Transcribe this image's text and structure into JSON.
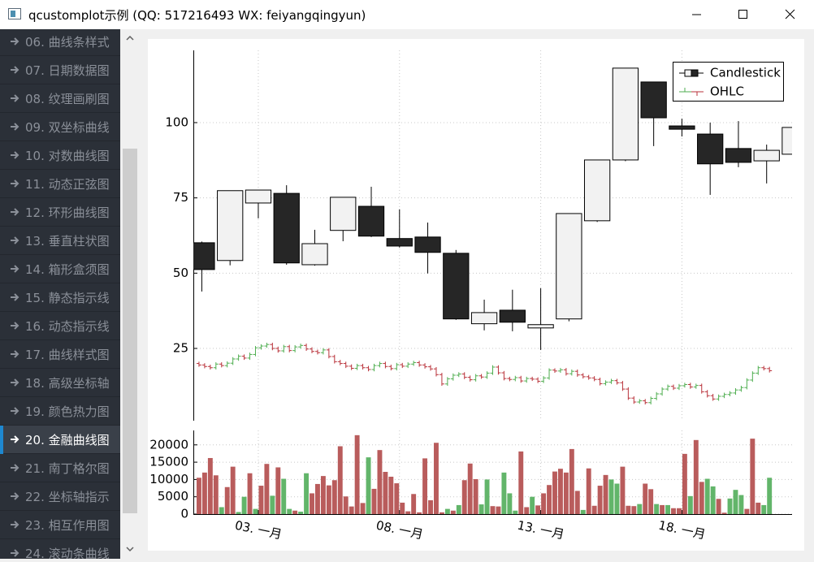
{
  "window": {
    "title": "qcustomplot示例 (QQ: 517216493 WX: feiyangqingyun)"
  },
  "sidebar": {
    "items": [
      "06. 曲线条样式",
      "07. 日期数据图",
      "08. 纹理画刷图",
      "09. 双坐标曲线",
      "10. 对数曲线图",
      "11. 动态正弦图",
      "12. 环形曲线图",
      "13. 垂直柱状图",
      "14. 箱形盒须图",
      "15. 静态指示线",
      "16. 动态指示线",
      "17. 曲线样式图",
      "18. 高级坐标轴",
      "19. 颜色热力图",
      "20. 金融曲线图",
      "21. 南丁格尔图",
      "22. 坐标轴指示",
      "23. 相互作用图",
      "24. 滚动条曲线"
    ],
    "selected": 14
  },
  "chart_data": [
    {
      "type": "candlestick",
      "xlim": [
        0.7,
        21.9
      ],
      "ylim": [
        1,
        124
      ],
      "yticks": [
        25,
        50,
        75,
        100
      ],
      "xticks": [
        3,
        8,
        13,
        18
      ],
      "grid": true,
      "legend": "top-right",
      "series": [
        {
          "name": "Candlestick",
          "type": "candlestick",
          "up_color": "#f2f2f2",
          "down_color": "#262626",
          "color": "#000000",
          "x": [
            1,
            2,
            3,
            4,
            5,
            6,
            7,
            8,
            9,
            10,
            11,
            12,
            13,
            14,
            15,
            16,
            17,
            18,
            19,
            20,
            21,
            22
          ],
          "open": [
            60.1,
            54.2,
            73.3,
            76.5,
            52.8,
            64.2,
            72.2,
            61.5,
            62.0,
            56.6,
            33.2,
            37.7,
            31.8,
            34.8,
            67.4,
            87.6,
            113.5,
            98.9,
            96.2,
            91.4,
            87.3,
            89.5
          ],
          "high": [
            60.5,
            77.4,
            77.6,
            79.2,
            64.4,
            75.2,
            78.7,
            71.2,
            66.8,
            57.7,
            41.2,
            44.5,
            45.0,
            69.8,
            87.6,
            118.1,
            113.5,
            101.3,
            100.0,
            100.5,
            92.7,
            98.4
          ],
          "low": [
            43.9,
            52.6,
            68.2,
            52.8,
            52.5,
            60.6,
            62.0,
            58.5,
            49.9,
            34.5,
            31.0,
            30.7,
            24.5,
            34.0,
            67.0,
            87.2,
            92.2,
            95.4,
            76.0,
            85.2,
            79.8,
            89.0
          ],
          "close": [
            51.2,
            77.4,
            77.6,
            53.4,
            59.8,
            75.2,
            62.3,
            59.0,
            56.9,
            34.8,
            36.9,
            33.7,
            32.9,
            69.8,
            87.6,
            118.1,
            101.6,
            97.8,
            86.3,
            86.8,
            90.8,
            98.4
          ]
        },
        {
          "name": "OHLC",
          "type": "ohlc",
          "up_color": "#4fae50",
          "down_color": "#b9323a",
          "x": [
            0.9,
            1.1,
            1.3,
            1.5,
            1.7,
            1.9,
            2.1,
            2.3,
            2.5,
            2.7,
            2.9,
            3.1,
            3.3,
            3.5,
            3.7,
            3.9,
            4.1,
            4.3,
            4.5,
            4.7,
            4.9,
            5.1,
            5.3,
            5.5,
            5.7,
            5.9,
            6.1,
            6.3,
            6.5,
            6.7,
            6.9,
            7.1,
            7.3,
            7.5,
            7.7,
            7.9,
            8.1,
            8.3,
            8.5,
            8.7,
            8.9,
            9.1,
            9.3,
            9.5,
            9.7,
            9.9,
            10.1,
            10.3,
            10.5,
            10.7,
            10.9,
            11.1,
            11.3,
            11.5,
            11.7,
            11.9,
            12.1,
            12.3,
            12.5,
            12.7,
            12.9,
            13.1,
            13.3,
            13.5,
            13.7,
            13.9,
            14.1,
            14.3,
            14.5,
            14.7,
            14.9,
            15.1,
            15.3,
            15.5,
            15.7,
            15.9,
            16.1,
            16.3,
            16.5,
            16.7,
            16.9,
            17.1,
            17.3,
            17.5,
            17.7,
            17.9,
            18.1,
            18.3,
            18.5,
            18.7,
            18.9,
            19.1,
            19.3,
            19.5,
            19.7,
            19.9,
            20.1,
            20.3,
            20.5,
            20.7,
            20.9,
            21.1
          ],
          "open": [
            20.0,
            19.5,
            19.0,
            18.6,
            19.8,
            19.3,
            20.1,
            21.5,
            22.4,
            21.8,
            23.0,
            25.2,
            25.8,
            26.3,
            25.0,
            24.2,
            25.6,
            24.3,
            25.5,
            26.0,
            24.8,
            24.0,
            23.6,
            24.5,
            22.3,
            20.6,
            20.0,
            19.1,
            18.4,
            19.3,
            18.6,
            18.0,
            19.3,
            20.0,
            19.0,
            18.3,
            19.6,
            19.1,
            19.8,
            20.3,
            19.5,
            18.9,
            18.2,
            16.3,
            13.2,
            14.9,
            16.1,
            16.5,
            15.4,
            14.6,
            15.9,
            15.5,
            16.8,
            18.8,
            16.9,
            15.0,
            14.7,
            15.3,
            14.2,
            15.0,
            14.8,
            14.1,
            15.2,
            17.8,
            17.5,
            17.9,
            16.6,
            17.4,
            16.2,
            15.6,
            15.2,
            14.7,
            13.3,
            13.8,
            14.3,
            13.6,
            11.5,
            8.5,
            7.2,
            7.6,
            7.0,
            8.4,
            9.9,
            11.5,
            12.4,
            11.8,
            12.6,
            13.0,
            12.2,
            12.7,
            10.6,
            9.3,
            8.2,
            9.1,
            9.7,
            10.2,
            11.2,
            12.0,
            14.5,
            16.8,
            18.6,
            18.3
          ],
          "high": [
            20.6,
            20.1,
            19.6,
            20.4,
            20.4,
            20.7,
            22.1,
            23.0,
            23.0,
            23.6,
            25.8,
            26.4,
            26.9,
            26.9,
            25.6,
            26.2,
            26.2,
            26.1,
            26.6,
            26.6,
            25.4,
            24.6,
            25.1,
            25.1,
            22.9,
            21.2,
            20.6,
            19.7,
            19.9,
            19.9,
            19.2,
            19.9,
            20.6,
            20.6,
            19.6,
            20.2,
            20.2,
            20.4,
            20.9,
            20.9,
            20.1,
            19.5,
            18.8,
            16.9,
            15.5,
            16.7,
            17.1,
            17.1,
            16.0,
            16.5,
            16.5,
            17.4,
            19.4,
            19.4,
            17.5,
            15.6,
            15.9,
            15.9,
            15.6,
            15.6,
            15.4,
            15.8,
            18.4,
            18.4,
            18.5,
            18.5,
            18.0,
            18.0,
            16.8,
            16.2,
            15.8,
            15.3,
            14.4,
            14.9,
            14.9,
            14.2,
            12.1,
            9.1,
            8.2,
            8.2,
            9.0,
            10.5,
            12.1,
            13.0,
            13.0,
            13.2,
            13.6,
            13.6,
            13.3,
            13.3,
            11.2,
            9.9,
            9.7,
            10.3,
            10.8,
            11.8,
            12.6,
            15.1,
            17.4,
            19.2,
            19.2,
            18.9
          ],
          "low": [
            18.9,
            18.4,
            18.0,
            18.0,
            18.7,
            18.7,
            19.5,
            20.9,
            21.2,
            21.2,
            22.4,
            24.6,
            25.2,
            24.4,
            23.6,
            23.6,
            23.7,
            23.7,
            24.9,
            24.2,
            23.4,
            23.0,
            23.0,
            21.7,
            20.0,
            19.4,
            18.5,
            17.8,
            17.8,
            18.0,
            17.4,
            17.4,
            18.7,
            18.4,
            17.7,
            17.7,
            18.5,
            18.5,
            19.2,
            18.9,
            18.3,
            17.6,
            15.7,
            12.6,
            12.6,
            14.3,
            15.5,
            14.8,
            14.0,
            14.0,
            14.9,
            14.9,
            16.2,
            16.3,
            14.4,
            14.1,
            14.1,
            13.6,
            13.6,
            14.2,
            13.5,
            13.5,
            14.6,
            16.9,
            16.9,
            16.0,
            16.0,
            15.6,
            15.0,
            14.6,
            14.1,
            12.7,
            12.7,
            13.2,
            13.0,
            10.9,
            7.9,
            6.6,
            6.6,
            6.4,
            6.4,
            7.8,
            9.3,
            10.9,
            11.2,
            11.2,
            12.0,
            11.6,
            11.6,
            10.0,
            8.7,
            7.6,
            7.6,
            8.5,
            9.1,
            9.6,
            10.6,
            11.4,
            13.9,
            16.2,
            17.7,
            17.0
          ],
          "close": [
            19.5,
            19.0,
            18.6,
            19.8,
            19.3,
            20.1,
            21.5,
            22.4,
            21.8,
            23.0,
            25.2,
            25.8,
            26.3,
            25.0,
            24.2,
            25.6,
            24.3,
            25.5,
            26.0,
            24.8,
            24.0,
            23.6,
            24.5,
            22.3,
            20.6,
            20.0,
            19.1,
            18.4,
            19.3,
            18.6,
            18.0,
            19.3,
            20.0,
            19.0,
            18.3,
            19.6,
            19.1,
            19.8,
            20.3,
            19.5,
            18.9,
            18.2,
            16.3,
            13.2,
            14.9,
            16.1,
            16.5,
            15.4,
            14.6,
            15.9,
            15.5,
            16.8,
            18.8,
            16.9,
            15.0,
            14.7,
            15.3,
            14.2,
            15.0,
            14.8,
            14.1,
            15.2,
            17.8,
            17.5,
            17.9,
            16.6,
            17.4,
            16.2,
            15.6,
            15.2,
            14.7,
            13.3,
            13.8,
            14.3,
            13.6,
            11.5,
            8.5,
            7.2,
            7.6,
            7.0,
            8.4,
            9.9,
            11.5,
            12.4,
            11.8,
            12.6,
            13.0,
            12.2,
            12.7,
            10.6,
            9.3,
            8.2,
            9.1,
            9.7,
            10.2,
            11.2,
            12.0,
            14.5,
            16.8,
            18.6,
            18.3,
            17.6
          ]
        }
      ]
    },
    {
      "type": "bar",
      "xlim": [
        0.7,
        21.9
      ],
      "ylim": [
        0,
        23000
      ],
      "yticks": [
        0,
        5000,
        10000,
        15000,
        20000
      ],
      "grid": true,
      "xticks": [
        {
          "value": 3,
          "label": "03. 一月"
        },
        {
          "value": 8,
          "label": "08. 一月"
        },
        {
          "value": 13,
          "label": "13. 一月"
        },
        {
          "value": 18,
          "label": "18. 一月"
        }
      ],
      "x": [
        0.9,
        1.1,
        1.3,
        1.5,
        1.7,
        1.9,
        2.1,
        2.3,
        2.5,
        2.7,
        2.9,
        3.1,
        3.3,
        3.5,
        3.7,
        3.9,
        4.1,
        4.3,
        4.5,
        4.7,
        4.9,
        5.1,
        5.3,
        5.5,
        5.7,
        5.9,
        6.1,
        6.3,
        6.5,
        6.7,
        6.9,
        7.1,
        7.3,
        7.5,
        7.7,
        7.9,
        8.1,
        8.3,
        8.5,
        8.7,
        8.9,
        9.1,
        9.3,
        9.5,
        9.7,
        9.9,
        10.1,
        10.3,
        10.5,
        10.7,
        10.9,
        11.1,
        11.3,
        11.5,
        11.7,
        11.9,
        12.1,
        12.3,
        12.5,
        12.7,
        12.9,
        13.1,
        13.3,
        13.5,
        13.7,
        13.9,
        14.1,
        14.3,
        14.5,
        14.7,
        14.9,
        15.1,
        15.3,
        15.5,
        15.7,
        15.9,
        16.1,
        16.3,
        16.5,
        16.7,
        16.9,
        17.1,
        17.3,
        17.5,
        17.7,
        17.9,
        18.1,
        18.3,
        18.5,
        18.7,
        18.9,
        19.1,
        19.3,
        19.5,
        19.7,
        19.9,
        20.1,
        20.3,
        20.5,
        20.7,
        20.9,
        21.1
      ],
      "values": [
        10500,
        12000,
        16200,
        11200,
        2000,
        7800,
        13700,
        600,
        5000,
        11800,
        1500,
        8200,
        14500,
        5300,
        13500,
        10200,
        1500,
        1000,
        700,
        11800,
        6000,
        8700,
        11000,
        8300,
        9800,
        19600,
        5100,
        2200,
        22800,
        3200,
        16400,
        7300,
        18500,
        12200,
        10800,
        8900,
        3300,
        800,
        5800,
        500,
        16100,
        4000,
        20600,
        500,
        1500,
        1000,
        2600,
        9800,
        14600,
        10100,
        2800,
        10000,
        2300,
        2200,
        12000,
        6000,
        1000,
        18100,
        2000,
        5000,
        2500,
        6000,
        8400,
        12300,
        13100,
        12000,
        18800,
        6700,
        1200,
        13200,
        2400,
        8200,
        11300,
        10000,
        8800,
        13700,
        2400,
        2300,
        2900,
        8800,
        7200,
        2900,
        2600,
        2600,
        1700,
        1700,
        17400,
        5200,
        21400,
        9300,
        10200,
        8000,
        4400,
        400,
        4500,
        7000,
        5500,
        1500,
        21800,
        3300,
        2600,
        10500
      ],
      "colors": [
        "#b95c5c",
        "#b95c5c",
        "#b95c5c",
        "#b95c5c",
        "#62b56a",
        "#b95c5c",
        "#b95c5c",
        "#62b56a",
        "#62b56a",
        "#b95c5c",
        "#62b56a",
        "#b95c5c",
        "#b95c5c",
        "#62b56a",
        "#b95c5c",
        "#62b56a",
        "#62b56a",
        "#b95c5c",
        "#62b56a",
        "#62b56a",
        "#b95c5c",
        "#b95c5c",
        "#b95c5c",
        "#b95c5c",
        "#b95c5c",
        "#b95c5c",
        "#b95c5c",
        "#b95c5c",
        "#b95c5c",
        "#b95c5c",
        "#62b56a",
        "#b95c5c",
        "#b95c5c",
        "#b95c5c",
        "#b95c5c",
        "#b95c5c",
        "#b95c5c",
        "#b95c5c",
        "#b95c5c",
        "#b95c5c",
        "#b95c5c",
        "#b95c5c",
        "#b95c5c",
        "#b95c5c",
        "#62b56a",
        "#b95c5c",
        "#62b56a",
        "#b95c5c",
        "#b95c5c",
        "#b95c5c",
        "#62b56a",
        "#62b56a",
        "#b95c5c",
        "#b95c5c",
        "#62b56a",
        "#62b56a",
        "#62b56a",
        "#b95c5c",
        "#b95c5c",
        "#62b56a",
        "#b95c5c",
        "#b95c5c",
        "#b95c5c",
        "#b95c5c",
        "#b95c5c",
        "#b95c5c",
        "#b95c5c",
        "#b95c5c",
        "#62b56a",
        "#b95c5c",
        "#b95c5c",
        "#b95c5c",
        "#b95c5c",
        "#62b56a",
        "#62b56a",
        "#b95c5c",
        "#b95c5c",
        "#b95c5c",
        "#62b56a",
        "#b95c5c",
        "#b95c5c",
        "#62b56a",
        "#b95c5c",
        "#62b56a",
        "#b95c5c",
        "#b95c5c",
        "#b95c5c",
        "#62b56a",
        "#b95c5c",
        "#b95c5c",
        "#62b56a",
        "#62b56a",
        "#b95c5c",
        "#b95c5c",
        "#62b56a",
        "#62b56a",
        "#62b56a",
        "#b95c5c",
        "#b95c5c",
        "#b95c5c",
        "#62b56a",
        "#62b56a"
      ]
    }
  ]
}
